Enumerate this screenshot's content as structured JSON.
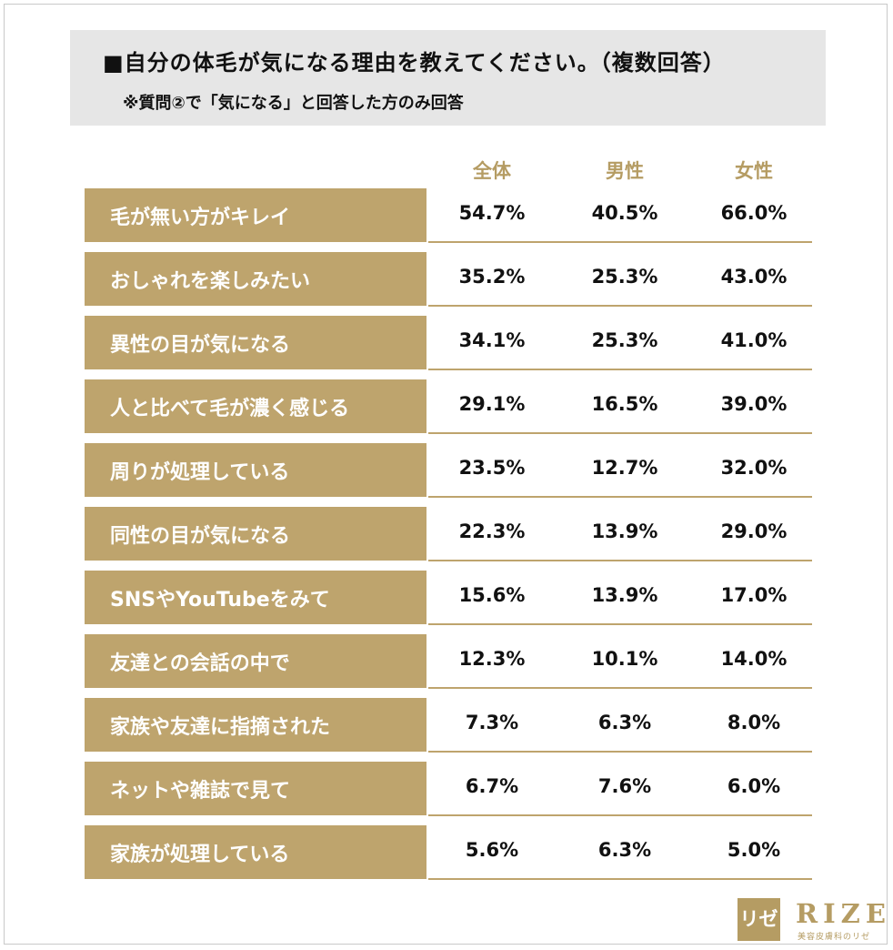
{
  "chart_data": {
    "type": "table",
    "title": "■自分の体毛が気になる理由を教えてください。（複数回答）",
    "subtitle": "※質問②で「気になる」と回答した方のみ回答",
    "columns": [
      "全体",
      "男性",
      "女性"
    ],
    "rows": [
      {
        "label": "毛が無い方がキレイ",
        "values": [
          "54.7%",
          "40.5%",
          "66.0%"
        ]
      },
      {
        "label": "おしゃれを楽しみたい",
        "values": [
          "35.2%",
          "25.3%",
          "43.0%"
        ]
      },
      {
        "label": "異性の目が気になる",
        "values": [
          "34.1%",
          "25.3%",
          "41.0%"
        ]
      },
      {
        "label": "人と比べて毛が濃く感じる",
        "values": [
          "29.1%",
          "16.5%",
          "39.0%"
        ]
      },
      {
        "label": "周りが処理している",
        "values": [
          "23.5%",
          "12.7%",
          "32.0%"
        ]
      },
      {
        "label": "同性の目が気になる",
        "values": [
          "22.3%",
          "13.9%",
          "29.0%"
        ]
      },
      {
        "label": "SNSやYouTubeをみて",
        "values": [
          "15.6%",
          "13.9%",
          "17.0%"
        ]
      },
      {
        "label": "友達との会話の中で",
        "values": [
          "12.3%",
          "10.1%",
          "14.0%"
        ]
      },
      {
        "label": "家族や友達に指摘された",
        "values": [
          "7.3%",
          "6.3%",
          "8.0%"
        ]
      },
      {
        "label": "ネットや雑誌で見て",
        "values": [
          "6.7%",
          "7.6%",
          "6.0%"
        ]
      },
      {
        "label": "家族が処理している",
        "values": [
          "5.6%",
          "6.3%",
          "5.0%"
        ]
      }
    ]
  },
  "logo": {
    "mark": "リゼ",
    "brand": "RIZE",
    "tagline": "美容皮膚科のリゼ"
  },
  "colors": {
    "accent": "#bea46d",
    "header_bg": "#e6e6e6"
  }
}
